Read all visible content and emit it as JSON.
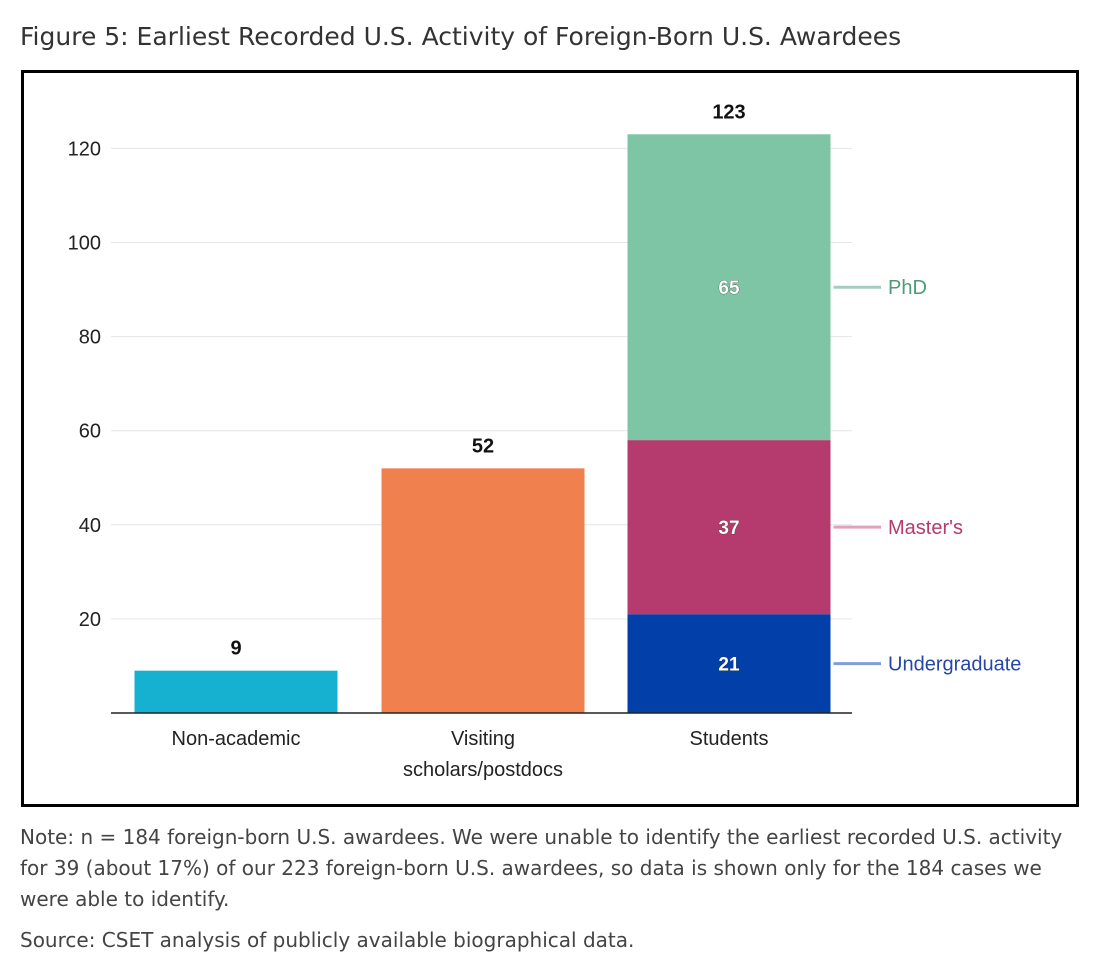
{
  "figure": {
    "title": "Figure 5: Earliest Recorded U.S. Activity of Foreign-Born U.S. Awardees",
    "note": "Note: n = 184 foreign-born U.S. awardees. We were unable to identify the earliest recorded U.S. activity for 39 (about 17%) of our 223 foreign-born U.S. awardees, so data is shown only for the 184 cases we were able to identify.",
    "source": "Source: CSET analysis of publicly available biographical data."
  },
  "chart_data": {
    "type": "bar",
    "stacked": true,
    "categories": [
      "Non-academic",
      "Visiting scholars/postdocs",
      "Students"
    ],
    "category_label_lines": [
      [
        "Non-academic"
      ],
      [
        "Visiting",
        "scholars/postdocs"
      ],
      [
        "Students"
      ]
    ],
    "totals": [
      9,
      52,
      123
    ],
    "simple_bars": [
      {
        "category": "Non-academic",
        "value": 9,
        "color": "#16b0d0"
      },
      {
        "category": "Visiting scholars/postdocs",
        "value": 52,
        "color": "#f0804e"
      }
    ],
    "stacked_series": [
      {
        "name": "Undergraduate",
        "category": "Students",
        "value": 21,
        "color": "#023fa8",
        "label_color": "#2547a8",
        "leader_color": "#7f9fd6"
      },
      {
        "name": "Master's",
        "category": "Students",
        "value": 37,
        "color": "#b53a6d",
        "label_color": "#b53a6d",
        "leader_color": "#e3a0bd"
      },
      {
        "name": "PhD",
        "category": "Students",
        "value": 65,
        "color": "#7ec5a5",
        "label_color": "#4b9b78",
        "leader_color": "#a5cfbd"
      }
    ],
    "y_ticks": [
      20,
      40,
      60,
      80,
      100,
      120
    ],
    "ylim": [
      0,
      130
    ],
    "grid": true,
    "legend_placement": "right, labels beside stacked segments"
  }
}
